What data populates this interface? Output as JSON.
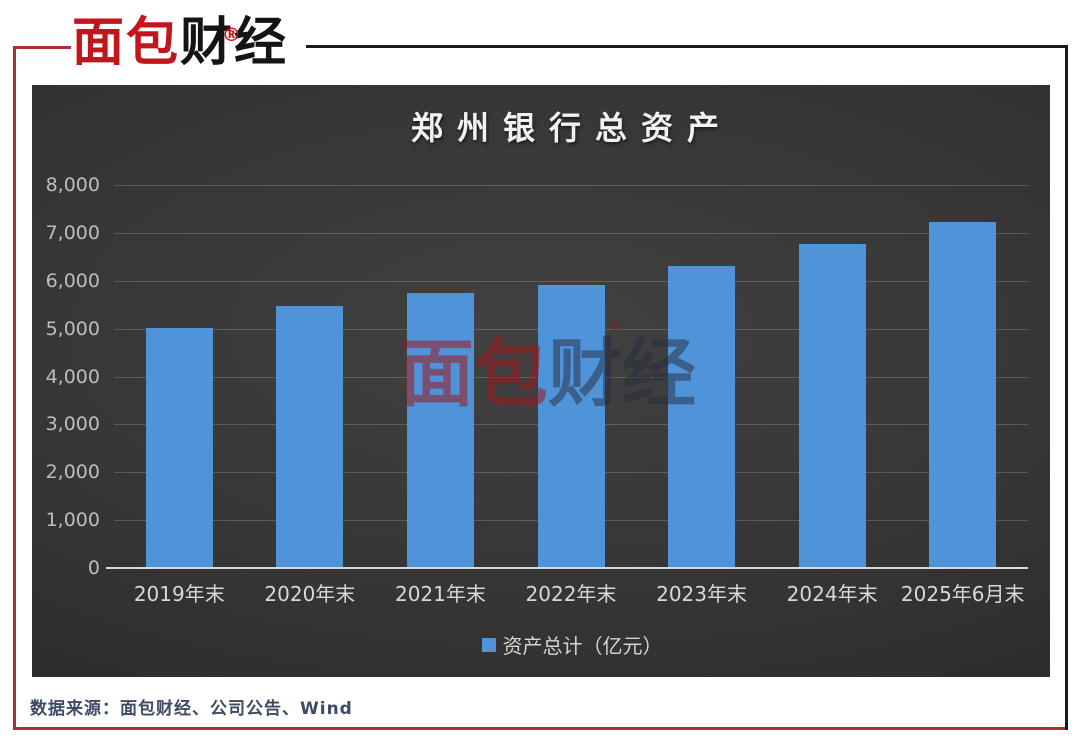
{
  "page": {
    "logo": {
      "text_red": "面包",
      "text_black": "财经",
      "reg_mark": "®"
    },
    "footer": {
      "source_text": "数据来源：面包财经、公司公告、Wind"
    },
    "colors": {
      "frame_red": "#b22d38",
      "frame_black": "#1b1b1b",
      "logo_red": "#c3161c",
      "logo_black": "#141414",
      "footer_text": "#3e4a66",
      "chart_bg_center": "#414141",
      "chart_bg_edge": "#252525"
    }
  },
  "chart_data": {
    "type": "bar",
    "title": "郑州银行总资产",
    "categories": [
      "2019年末",
      "2020年末",
      "2021年末",
      "2022年末",
      "2023年末",
      "2024年末",
      "2025年6月末"
    ],
    "values": [
      5005,
      5478,
      5750,
      5916,
      6307,
      6764,
      7219
    ],
    "series_name": "资产总计（亿元）",
    "unit": "亿元",
    "ylim": [
      0,
      8000
    ],
    "ytick_step": 1000,
    "ytick_labels": [
      "0",
      "1,000",
      "2,000",
      "3,000",
      "4,000",
      "5,000",
      "6,000",
      "7,000",
      "8,000"
    ],
    "bar_color": "#4f93d8",
    "grid": true,
    "legend_position": "bottom",
    "watermark": {
      "text_red": "面包",
      "text_dark": "财经",
      "reg_mark": "®"
    }
  }
}
